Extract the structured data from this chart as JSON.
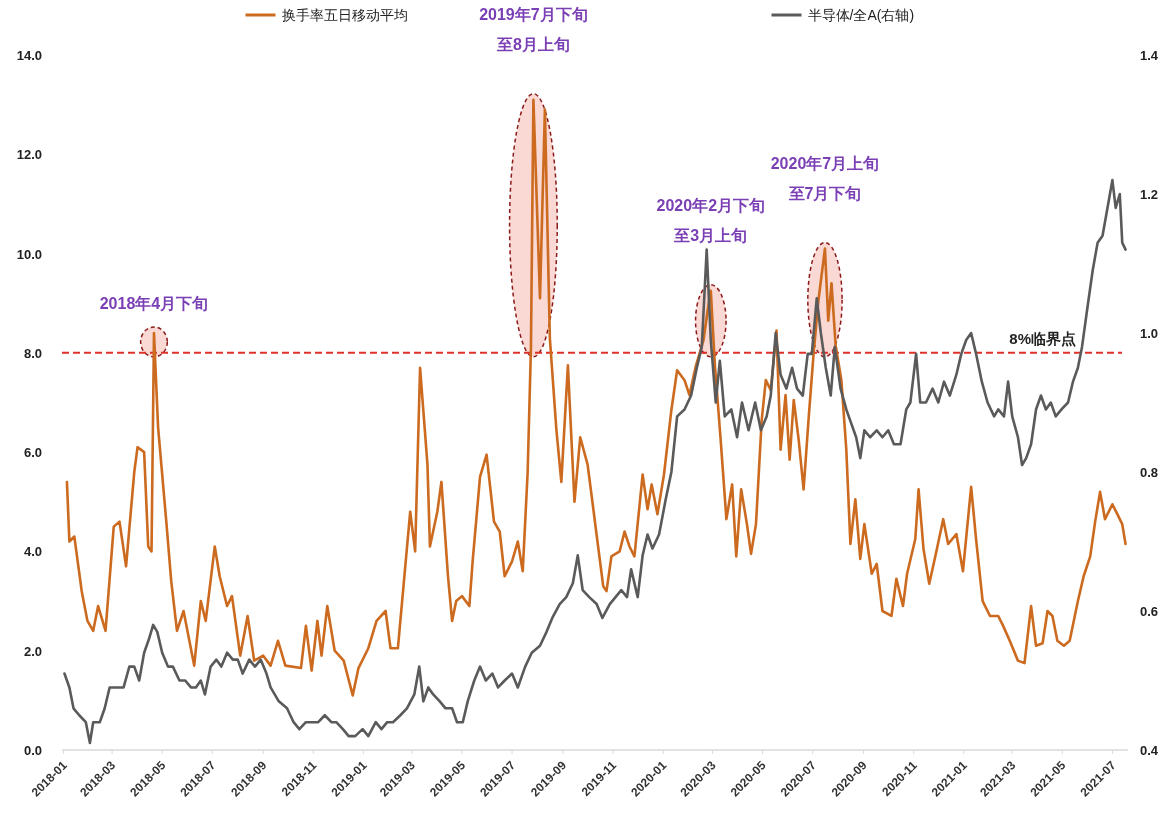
{
  "chart_data": {
    "type": "line",
    "series": [
      {
        "name": "换手率五日移动平均",
        "color": "#cc6a1f",
        "x": [
          "2018-01-05",
          "2018-01-08",
          "2018-01-14",
          "2018-01-23",
          "2018-01-30",
          "2018-02-06",
          "2018-02-12",
          "2018-02-21",
          "2018-03-03",
          "2018-03-10",
          "2018-03-18",
          "2018-03-28",
          "2018-04-01",
          "2018-04-09",
          "2018-04-14",
          "2018-04-18",
          "2018-04-21",
          "2018-04-26",
          "2018-05-06",
          "2018-05-12",
          "2018-05-19",
          "2018-05-27",
          "2018-06-09",
          "2018-06-17",
          "2018-06-23",
          "2018-07-04",
          "2018-07-10",
          "2018-07-19",
          "2018-07-25",
          "2018-08-04",
          "2018-08-13",
          "2018-08-21",
          "2018-09-01",
          "2018-09-10",
          "2018-09-19",
          "2018-09-28",
          "2018-10-17",
          "2018-10-23",
          "2018-10-30",
          "2018-11-06",
          "2018-11-11",
          "2018-11-18",
          "2018-11-27",
          "2018-12-08",
          "2018-12-19",
          "2018-12-26",
          "2019-01-07",
          "2019-01-17",
          "2019-01-28",
          "2019-02-03",
          "2019-02-12",
          "2019-02-27",
          "2019-03-05",
          "2019-03-11",
          "2019-03-20",
          "2019-03-23",
          "2019-04-01",
          "2019-04-06",
          "2019-04-14",
          "2019-04-19",
          "2019-04-24",
          "2019-05-01",
          "2019-05-10",
          "2019-05-14",
          "2019-05-23",
          "2019-05-31",
          "2019-06-09",
          "2019-06-16",
          "2019-06-22",
          "2019-07-01",
          "2019-07-08",
          "2019-07-14",
          "2019-07-20",
          "2019-07-24",
          "2019-07-27",
          "2019-08-04",
          "2019-08-10",
          "2019-08-16",
          "2019-08-24",
          "2019-08-30",
          "2019-09-07",
          "2019-09-15",
          "2019-09-22",
          "2019-10-01",
          "2019-10-08",
          "2019-10-13",
          "2019-10-20",
          "2019-10-24",
          "2019-10-30",
          "2019-11-09",
          "2019-11-15",
          "2019-11-21",
          "2019-11-27",
          "2019-12-07",
          "2019-12-13",
          "2019-12-18",
          "2019-12-25",
          "2020-01-02",
          "2020-01-11",
          "2020-01-18",
          "2020-01-27",
          "2020-02-02",
          "2020-02-10",
          "2020-02-19",
          "2020-02-25",
          "2020-02-28",
          "2020-03-04",
          "2020-03-11",
          "2020-03-18",
          "2020-03-25",
          "2020-03-30",
          "2020-04-05",
          "2020-04-12",
          "2020-04-17",
          "2020-04-23",
          "2020-04-30",
          "2020-05-05",
          "2020-05-11",
          "2020-05-18",
          "2020-05-23",
          "2020-05-29",
          "2020-06-03",
          "2020-06-08",
          "2020-06-14",
          "2020-06-20",
          "2020-06-26",
          "2020-07-02",
          "2020-07-08",
          "2020-07-16",
          "2020-07-20",
          "2020-07-24",
          "2020-07-29",
          "2020-08-05",
          "2020-08-11",
          "2020-08-16",
          "2020-08-22",
          "2020-08-28",
          "2020-09-02",
          "2020-09-11",
          "2020-09-17",
          "2020-09-24",
          "2020-10-05",
          "2020-10-11",
          "2020-10-19",
          "2020-10-24",
          "2020-11-03",
          "2020-11-07",
          "2020-11-13",
          "2020-11-20",
          "2020-11-28",
          "2020-12-07",
          "2020-12-13",
          "2020-12-23",
          "2020-12-31",
          "2021-01-10",
          "2021-01-16",
          "2021-01-24",
          "2021-02-02",
          "2021-02-12",
          "2021-02-18",
          "2021-02-26",
          "2021-03-08",
          "2021-03-16",
          "2021-03-24",
          "2021-03-30",
          "2021-04-07",
          "2021-04-13",
          "2021-04-19",
          "2021-04-25",
          "2021-05-03",
          "2021-05-10",
          "2021-05-20",
          "2021-05-27",
          "2021-06-04",
          "2021-06-10",
          "2021-06-16",
          "2021-06-22",
          "2021-07-01",
          "2021-07-07",
          "2021-07-13",
          "2021-07-17"
        ],
        "values": [
          5.4,
          4.2,
          4.3,
          3.2,
          2.6,
          2.4,
          2.9,
          2.4,
          4.5,
          4.6,
          3.7,
          5.6,
          6.1,
          6.0,
          4.1,
          4.0,
          8.4,
          6.5,
          4.6,
          3.4,
          2.4,
          2.8,
          1.7,
          3.0,
          2.6,
          4.1,
          3.5,
          2.9,
          3.1,
          1.9,
          2.7,
          1.8,
          1.9,
          1.7,
          2.2,
          1.7,
          1.65,
          2.5,
          1.6,
          2.6,
          1.9,
          2.9,
          2.0,
          1.8,
          1.1,
          1.65,
          2.05,
          2.6,
          2.8,
          2.05,
          2.05,
          4.8,
          4.0,
          7.7,
          5.75,
          4.1,
          4.8,
          5.4,
          3.5,
          2.6,
          3.0,
          3.1,
          2.9,
          3.8,
          5.5,
          5.95,
          4.6,
          4.4,
          3.5,
          3.8,
          4.2,
          3.6,
          5.6,
          8.1,
          13.1,
          9.1,
          12.9,
          8.3,
          6.45,
          5.4,
          7.75,
          5.0,
          6.3,
          5.75,
          4.85,
          4.2,
          3.3,
          3.2,
          3.9,
          4.0,
          4.4,
          4.1,
          3.9,
          5.55,
          4.85,
          5.35,
          4.75,
          5.55,
          6.85,
          7.65,
          7.45,
          7.15,
          7.75,
          8.25,
          8.95,
          9.25,
          7.75,
          6.25,
          4.65,
          5.35,
          3.9,
          5.25,
          4.55,
          3.95,
          4.55,
          6.65,
          7.45,
          7.25,
          8.45,
          6.05,
          7.15,
          5.85,
          7.05,
          6.25,
          5.25,
          6.65,
          7.95,
          9.05,
          10.1,
          8.65,
          9.4,
          8.15,
          7.45,
          6.05,
          4.15,
          5.05,
          3.85,
          4.55,
          3.55,
          3.75,
          2.8,
          2.7,
          3.45,
          2.9,
          3.55,
          4.25,
          5.25,
          4.05,
          3.35,
          3.95,
          4.65,
          4.15,
          4.35,
          3.6,
          5.3,
          4.25,
          3.0,
          2.7,
          2.7,
          2.5,
          2.2,
          1.8,
          1.75,
          2.9,
          2.1,
          2.15,
          2.8,
          2.7,
          2.2,
          2.1,
          2.2,
          3.0,
          3.5,
          3.9,
          4.6,
          5.2,
          4.65,
          4.95,
          4.75,
          4.55,
          4.15
        ]
      },
      {
        "name": "半导体/全A(右轴)",
        "color": "#5a5a5a",
        "axis": "y2",
        "x": [
          "2018-01-02",
          "2018-01-08",
          "2018-01-13",
          "2018-01-20",
          "2018-01-28",
          "2018-02-02",
          "2018-02-06",
          "2018-02-14",
          "2018-02-20",
          "2018-02-26",
          "2018-03-04",
          "2018-03-10",
          "2018-03-15",
          "2018-03-22",
          "2018-03-28",
          "2018-04-03",
          "2018-04-09",
          "2018-04-15",
          "2018-04-20",
          "2018-04-25",
          "2018-05-01",
          "2018-05-08",
          "2018-05-14",
          "2018-05-22",
          "2018-05-29",
          "2018-06-05",
          "2018-06-11",
          "2018-06-17",
          "2018-06-22",
          "2018-06-29",
          "2018-07-06",
          "2018-07-12",
          "2018-07-19",
          "2018-07-26",
          "2018-08-01",
          "2018-08-07",
          "2018-08-15",
          "2018-08-22",
          "2018-08-29",
          "2018-09-05",
          "2018-09-10",
          "2018-09-20",
          "2018-09-30",
          "2018-10-08",
          "2018-10-15",
          "2018-10-23",
          "2018-10-31",
          "2018-11-07",
          "2018-11-15",
          "2018-11-23",
          "2018-11-29",
          "2018-12-07",
          "2018-12-14",
          "2018-12-22",
          "2018-12-31",
          "2019-01-07",
          "2019-01-16",
          "2019-01-23",
          "2019-01-30",
          "2019-02-06",
          "2019-02-15",
          "2019-02-23",
          "2019-03-04",
          "2019-03-10",
          "2019-03-15",
          "2019-03-21",
          "2019-03-27",
          "2019-04-04",
          "2019-04-11",
          "2019-04-19",
          "2019-04-25",
          "2019-05-02",
          "2019-05-08",
          "2019-05-16",
          "2019-05-23",
          "2019-05-30",
          "2019-06-07",
          "2019-06-14",
          "2019-06-22",
          "2019-07-01",
          "2019-07-08",
          "2019-07-17",
          "2019-07-25",
          "2019-08-04",
          "2019-08-12",
          "2019-08-19",
          "2019-08-28",
          "2019-09-05",
          "2019-09-13",
          "2019-09-19",
          "2019-09-25",
          "2019-10-03",
          "2019-10-12",
          "2019-10-19",
          "2019-10-28",
          "2019-11-04",
          "2019-11-11",
          "2019-11-18",
          "2019-11-23",
          "2019-12-01",
          "2019-12-07",
          "2019-12-13",
          "2019-12-19",
          "2019-12-27",
          "2020-01-04",
          "2020-01-11",
          "2020-01-18",
          "2020-01-27",
          "2020-02-04",
          "2020-02-11",
          "2020-02-17",
          "2020-02-23",
          "2020-02-28",
          "2020-03-05",
          "2020-03-10",
          "2020-03-16",
          "2020-03-24",
          "2020-03-31",
          "2020-04-06",
          "2020-04-14",
          "2020-04-22",
          "2020-04-29",
          "2020-05-06",
          "2020-05-11",
          "2020-05-17",
          "2020-05-23",
          "2020-05-30",
          "2020-06-06",
          "2020-06-12",
          "2020-06-19",
          "2020-06-25",
          "2020-06-30",
          "2020-07-06",
          "2020-07-11",
          "2020-07-17",
          "2020-07-23",
          "2020-07-28",
          "2020-08-04",
          "2020-08-11",
          "2020-08-17",
          "2020-08-23",
          "2020-08-28",
          "2020-09-02",
          "2020-09-09",
          "2020-09-17",
          "2020-09-24",
          "2020-10-01",
          "2020-10-08",
          "2020-10-16",
          "2020-10-23",
          "2020-10-28",
          "2020-11-04",
          "2020-11-09",
          "2020-11-16",
          "2020-11-24",
          "2020-12-01",
          "2020-12-08",
          "2020-12-15",
          "2020-12-23",
          "2020-12-29",
          "2021-01-04",
          "2021-01-10",
          "2021-01-16",
          "2021-01-23",
          "2021-01-30",
          "2021-02-07",
          "2021-02-12",
          "2021-02-19",
          "2021-02-24",
          "2021-03-01",
          "2021-03-08",
          "2021-03-13",
          "2021-03-18",
          "2021-03-24",
          "2021-03-30",
          "2021-04-05",
          "2021-04-11",
          "2021-04-17",
          "2021-04-23",
          "2021-04-30",
          "2021-05-08",
          "2021-05-14",
          "2021-05-20",
          "2021-05-25",
          "2021-06-01",
          "2021-06-07",
          "2021-06-13",
          "2021-06-19",
          "2021-06-25",
          "2021-07-01",
          "2021-07-05",
          "2021-07-10",
          "2021-07-13",
          "2021-07-17"
        ],
        "values": [
          0.51,
          0.49,
          0.46,
          0.45,
          0.44,
          0.41,
          0.44,
          0.44,
          0.46,
          0.49,
          0.49,
          0.49,
          0.49,
          0.52,
          0.52,
          0.5,
          0.54,
          0.56,
          0.58,
          0.57,
          0.54,
          0.52,
          0.52,
          0.5,
          0.5,
          0.49,
          0.49,
          0.5,
          0.48,
          0.52,
          0.53,
          0.52,
          0.54,
          0.53,
          0.53,
          0.51,
          0.53,
          0.52,
          0.53,
          0.51,
          0.49,
          0.47,
          0.46,
          0.44,
          0.43,
          0.44,
          0.44,
          0.44,
          0.45,
          0.44,
          0.44,
          0.43,
          0.42,
          0.42,
          0.43,
          0.42,
          0.44,
          0.43,
          0.44,
          0.44,
          0.45,
          0.46,
          0.48,
          0.52,
          0.47,
          0.49,
          0.48,
          0.47,
          0.46,
          0.46,
          0.44,
          0.44,
          0.47,
          0.5,
          0.52,
          0.5,
          0.51,
          0.49,
          0.5,
          0.51,
          0.49,
          0.52,
          0.54,
          0.55,
          0.57,
          0.59,
          0.61,
          0.62,
          0.64,
          0.68,
          0.63,
          0.62,
          0.61,
          0.59,
          0.61,
          0.62,
          0.63,
          0.62,
          0.66,
          0.62,
          0.68,
          0.71,
          0.69,
          0.71,
          0.76,
          0.8,
          0.88,
          0.89,
          0.91,
          0.95,
          0.98,
          1.12,
          0.99,
          0.9,
          0.96,
          0.88,
          0.89,
          0.85,
          0.9,
          0.86,
          0.9,
          0.86,
          0.88,
          0.91,
          1.0,
          0.94,
          0.92,
          0.95,
          0.92,
          0.91,
          0.97,
          0.97,
          1.05,
          1.0,
          0.95,
          0.91,
          0.98,
          0.92,
          0.89,
          0.87,
          0.85,
          0.82,
          0.86,
          0.85,
          0.86,
          0.85,
          0.86,
          0.84,
          0.84,
          0.89,
          0.9,
          0.97,
          0.9,
          0.9,
          0.92,
          0.9,
          0.93,
          0.91,
          0.94,
          0.97,
          0.99,
          1.0,
          0.97,
          0.93,
          0.9,
          0.88,
          0.89,
          0.88,
          0.93,
          0.88,
          0.85,
          0.81,
          0.82,
          0.84,
          0.89,
          0.91,
          0.89,
          0.9,
          0.88,
          0.89,
          0.9,
          0.93,
          0.95,
          0.98,
          1.04,
          1.09,
          1.13,
          1.14,
          1.18,
          1.22,
          1.18,
          1.2,
          1.13,
          1.12
        ]
      }
    ],
    "xlim": [
      "2017-12-30",
      "2021-07-20"
    ],
    "xticks": [
      "2018-01",
      "2018-03",
      "2018-05",
      "2018-07",
      "2018-09",
      "2018-11",
      "2019-01",
      "2019-03",
      "2019-05",
      "2019-07",
      "2019-09",
      "2019-11",
      "2020-01",
      "2020-03",
      "2020-05",
      "2020-07",
      "2020-09",
      "2020-11",
      "2021-01",
      "2021-03",
      "2021-05",
      "2021-07"
    ],
    "ylim": [
      0,
      14
    ],
    "yticks": [
      {
        "value": 0,
        "label": "0.0"
      },
      {
        "value": 2,
        "label": "2.0"
      },
      {
        "value": 4,
        "label": "4.0"
      },
      {
        "value": 6,
        "label": "6.0"
      },
      {
        "value": 8,
        "label": "8.0"
      },
      {
        "value": 10,
        "label": "10.0"
      },
      {
        "value": 12,
        "label": "12.0"
      },
      {
        "value": 14,
        "label": "14.0"
      }
    ],
    "y2lim": [
      0.4,
      1.4
    ],
    "y2ticks": [
      {
        "value": 0.4,
        "label": "0.4"
      },
      {
        "value": 0.6,
        "label": "0.6"
      },
      {
        "value": 0.8,
        "label": "0.8"
      },
      {
        "value": 1,
        "label": "1.0"
      },
      {
        "value": 1.2,
        "label": "1.2"
      },
      {
        "value": 1.4,
        "label": "1.4"
      }
    ],
    "ref_lines": [
      {
        "axis": "y",
        "value": 8,
        "label": "8%临界点",
        "color": "#e0302a",
        "line_style": "dashed"
      }
    ],
    "annotations": [
      {
        "text": "2018年4月下旬",
        "x": "2018-04-21",
        "y": 8.4
      },
      {
        "text": "2019年7月下旬至8月上旬",
        "x": "2019-07-27",
        "y": 13.1
      },
      {
        "text": "2020年2月下旬至3月上旬",
        "x": "2020-02-28",
        "y": 9.25
      },
      {
        "text": "2020年7月上旬至7月下旬",
        "x": "2020-07-16",
        "y": 10.1
      }
    ],
    "legend": "top"
  }
}
